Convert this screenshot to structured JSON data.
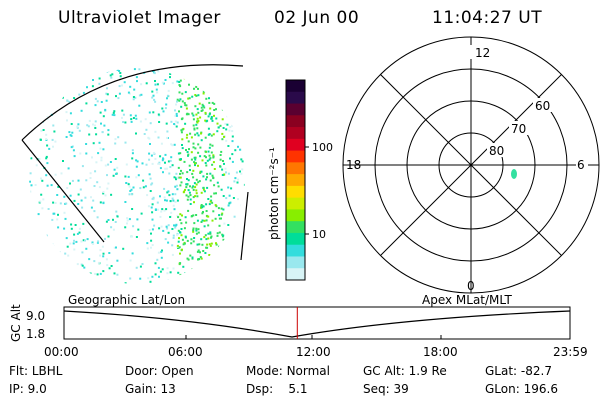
{
  "header": {
    "instrument": "Ultraviolet Imager",
    "date": "02 Jun 00",
    "time": "11:04:27 UT"
  },
  "colorbar": {
    "unit_label": "photon cm⁻²s⁻¹",
    "ticks": [
      "100",
      "10"
    ],
    "colors": [
      "#1a0033",
      "#2a0a4a",
      "#5a0030",
      "#8a0020",
      "#b00020",
      "#e00020",
      "#ff3300",
      "#ff7700",
      "#ffaa00",
      "#ffdd00",
      "#ccee00",
      "#88ee00",
      "#33e060",
      "#00dd99",
      "#33dddd",
      "#99e8ee",
      "#d8f4f6"
    ]
  },
  "polar_plot": {
    "mlt_labels": [
      "12",
      "18",
      "6",
      "0"
    ],
    "lat_labels": [
      "60",
      "70",
      "80"
    ]
  },
  "timeline": {
    "left_title": "Geographic Lat/Lon",
    "right_title": "Apex MLat/MLT",
    "axis_label": "GC Alt",
    "y_ticks": [
      "9.0",
      "1.8"
    ],
    "x_ticks": [
      "00:00",
      "06:00",
      "12:00",
      "18:00",
      "23:59"
    ],
    "current_time_fraction": 0.461
  },
  "info": {
    "row1": [
      {
        "label": "Flt:",
        "value": "LBHL"
      },
      {
        "label": "Door:",
        "value": "Open"
      },
      {
        "label": "Mode:",
        "value": "Normal"
      },
      {
        "label": "GC Alt:",
        "value": "1.9 Re"
      },
      {
        "label": "GLat:",
        "value": "-82.7"
      }
    ],
    "row2": [
      {
        "label": "IP:",
        "value": "9.0"
      },
      {
        "label": "Gain:",
        "value": "13"
      },
      {
        "label": "Dsp:",
        "value": "5.1"
      },
      {
        "label": "Seq:",
        "value": "39"
      },
      {
        "label": "GLon:",
        "value": "196.6"
      }
    ]
  }
}
